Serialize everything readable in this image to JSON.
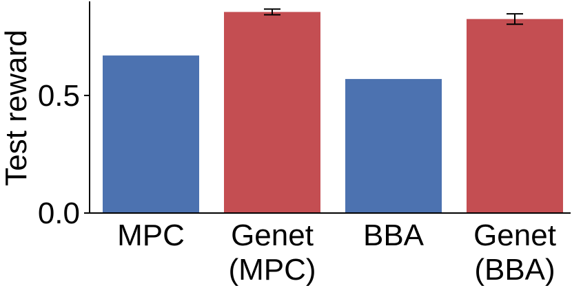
{
  "chart_data": {
    "type": "bar",
    "title": "",
    "xlabel": "",
    "ylabel": "Test reward",
    "ylim": [
      0,
      0.9
    ],
    "yticks": [
      0.0,
      0.5
    ],
    "ytick_labels": [
      "0.0",
      "0.5"
    ],
    "grid": false,
    "legend": "none",
    "categories": [
      [
        "MPC"
      ],
      [
        "Genet",
        "(MPC)"
      ],
      [
        "BBA"
      ],
      [
        "Genet",
        "(BBA)"
      ]
    ],
    "values": [
      0.67,
      0.855,
      0.57,
      0.825
    ],
    "errors": [
      null,
      0.012,
      null,
      0.022
    ],
    "bar_colors": [
      "#4c72b0",
      "#c44e52",
      "#4c72b0",
      "#c44e52"
    ]
  }
}
